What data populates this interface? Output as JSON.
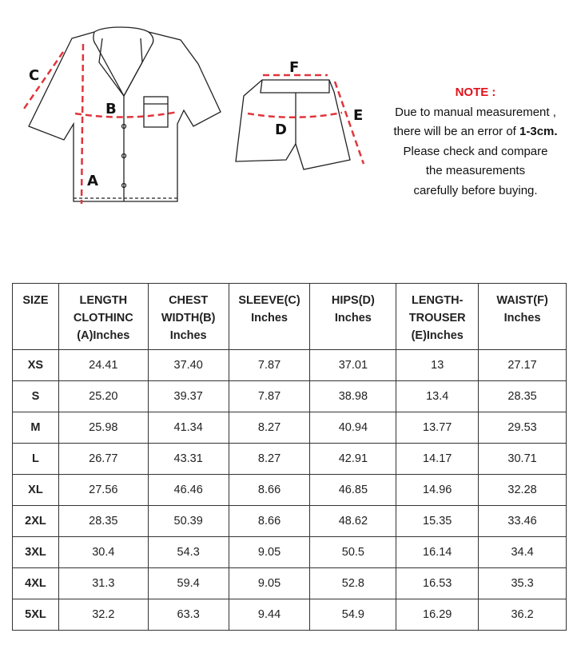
{
  "diagram": {
    "labels": {
      "a": "A",
      "b": "B",
      "c": "C",
      "d": "D",
      "e": "E",
      "f": "F"
    },
    "accent": "#e0353b"
  },
  "note": {
    "title": "NOTE :",
    "line1": "Due to manual measurement ,",
    "line2_pre": "there will be an error of ",
    "line2_bold": "1-3cm.",
    "line3": "Please check and compare",
    "line4": "the measurements",
    "line5": "carefully before buying."
  },
  "table": {
    "headers": [
      "SIZE",
      "LENGTH CLOTHINC (A)Inches",
      "CHEST WIDTH(B) Inches",
      "SLEEVE(C) Inches",
      "HIPS(D) Inches",
      "LENGTH- TROUSER (E)Inches",
      "WAIST(F) Inches"
    ],
    "rows": [
      [
        "XS",
        "24.41",
        "37.40",
        "7.87",
        "37.01",
        "13",
        "27.17"
      ],
      [
        "S",
        "25.20",
        "39.37",
        "7.87",
        "38.98",
        "13.4",
        "28.35"
      ],
      [
        "M",
        "25.98",
        "41.34",
        "8.27",
        "40.94",
        "13.77",
        "29.53"
      ],
      [
        "L",
        "26.77",
        "43.31",
        "8.27",
        "42.91",
        "14.17",
        "30.71"
      ],
      [
        "XL",
        "27.56",
        "46.46",
        "8.66",
        "46.85",
        "14.96",
        "32.28"
      ],
      [
        "2XL",
        "28.35",
        "50.39",
        "8.66",
        "48.62",
        "15.35",
        "33.46"
      ],
      [
        "3XL",
        "30.4",
        "54.3",
        "9.05",
        "50.5",
        "16.14",
        "34.4"
      ],
      [
        "4XL",
        "31.3",
        "59.4",
        "9.05",
        "52.8",
        "16.53",
        "35.3"
      ],
      [
        "5XL",
        "32.2",
        "63.3",
        "9.44",
        "54.9",
        "16.29",
        "36.2"
      ]
    ]
  }
}
